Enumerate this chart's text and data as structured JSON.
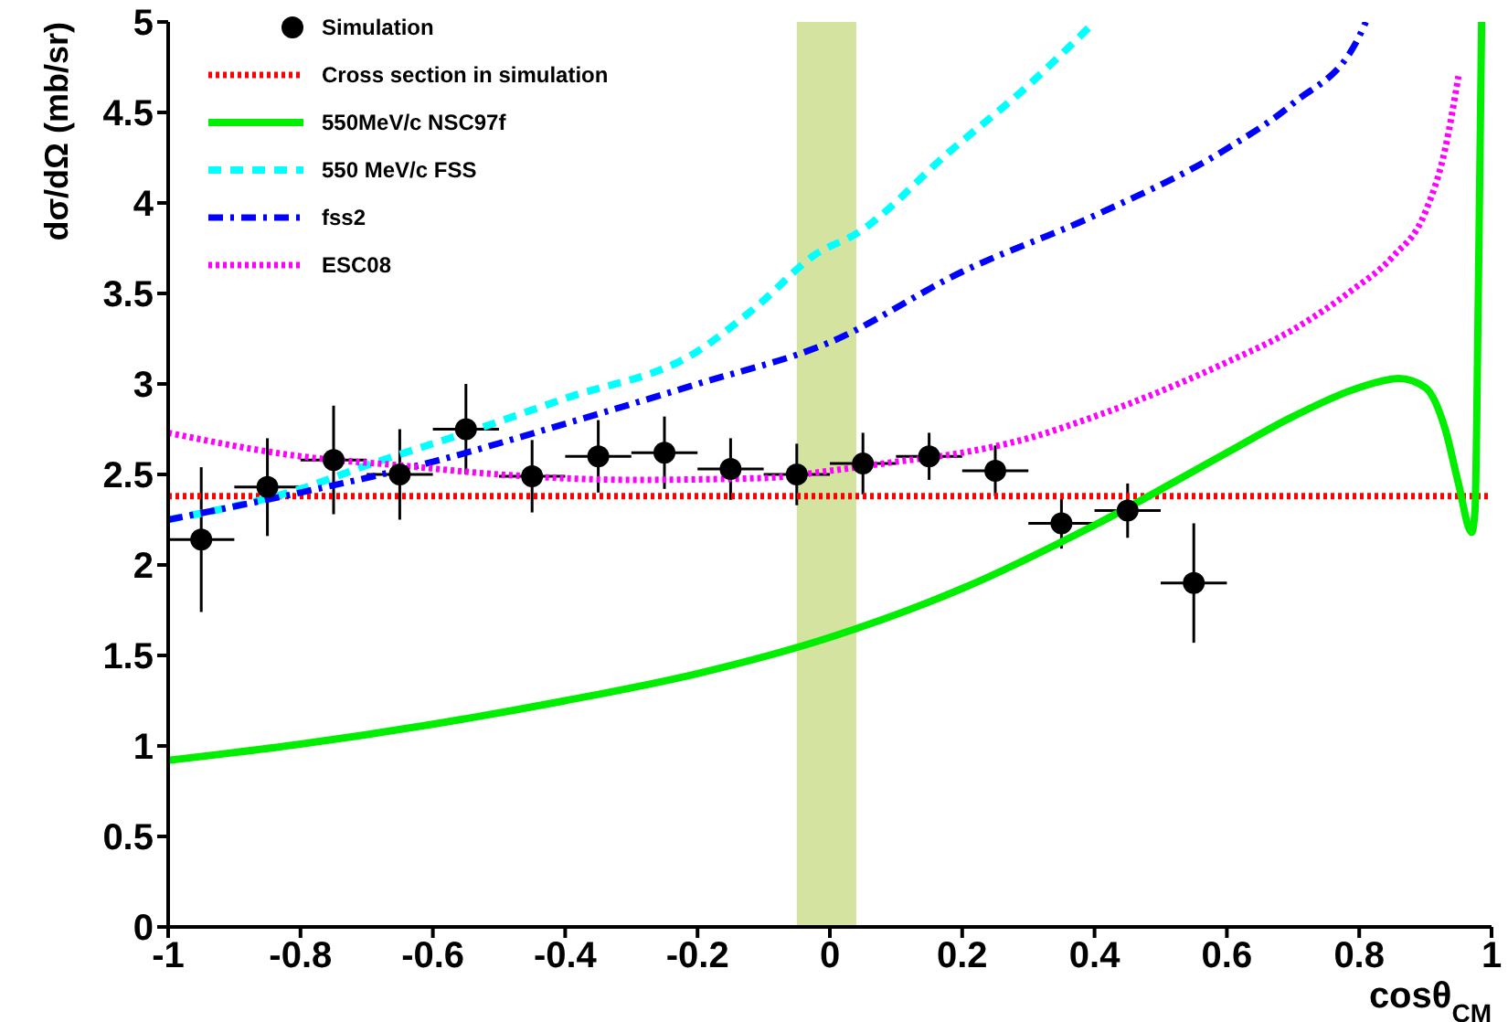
{
  "chart_data": {
    "type": "line",
    "xlabel": "cosθ$_{CM}$",
    "ylabel": "dσ/dΩ (mb/sr)",
    "xlim": [
      -1,
      1
    ],
    "xticks": [
      -1,
      -0.8,
      -0.6,
      -0.4,
      -0.2,
      0,
      0.2,
      0.4,
      0.6,
      0.8,
      1
    ],
    "ylim": [
      0,
      5
    ],
    "yticks": [
      0,
      0.5,
      1,
      1.5,
      2,
      2.5,
      3,
      3.5,
      4,
      4.5,
      5
    ],
    "grid": false,
    "legend": "top left",
    "bands": [
      {
        "axis": "x",
        "from": -0.05,
        "to": 0.04,
        "color": "#d4e4a0"
      }
    ],
    "series": [
      {
        "name": "Simulation",
        "type": "scatter",
        "marker": "circle",
        "color": "#000000",
        "x": [
          -0.95,
          -0.85,
          -0.75,
          -0.65,
          -0.55,
          -0.45,
          -0.35,
          -0.25,
          -0.15,
          -0.05,
          0.05,
          0.15,
          0.25,
          0.35,
          0.45,
          0.55
        ],
        "values": [
          2.14,
          2.43,
          2.58,
          2.5,
          2.75,
          2.49,
          2.6,
          2.62,
          2.53,
          2.5,
          2.56,
          2.6,
          2.52,
          2.23,
          2.3,
          1.9
        ],
        "errors": [
          0.4,
          0.27,
          0.3,
          0.25,
          0.25,
          0.2,
          0.2,
          0.2,
          0.17,
          0.17,
          0.17,
          0.13,
          0.14,
          0.14,
          0.15,
          0.33
        ],
        "xerrors": [
          0.05,
          0.05,
          0.05,
          0.05,
          0.05,
          0.05,
          0.05,
          0.05,
          0.05,
          0.05,
          0.05,
          0.05,
          0.05,
          0.05,
          0.05,
          0.05
        ]
      },
      {
        "name": "Cross section in simulation",
        "line_style": "dotted",
        "color": "#ff0000",
        "x": [
          -1,
          1
        ],
        "values": [
          2.38,
          2.38
        ]
      },
      {
        "name": "550MeV/c NSC97f",
        "line_style": "solid",
        "color": "#00ee00",
        "x": [
          -1,
          -0.8,
          -0.6,
          -0.4,
          -0.2,
          0,
          0.2,
          0.4,
          0.6,
          0.7,
          0.8,
          0.86,
          0.9,
          0.93,
          0.95,
          0.97,
          0.975,
          0.98,
          0.985
        ],
        "values": [
          0.92,
          1.01,
          1.12,
          1.25,
          1.4,
          1.6,
          1.87,
          2.22,
          2.62,
          2.82,
          2.98,
          3.03,
          2.98,
          2.75,
          2.45,
          2.18,
          2.3,
          3.5,
          5
        ]
      },
      {
        "name": "550 MeV/c FSS",
        "line_style": "dashed",
        "color": "#00ffff",
        "x": [
          -1,
          -0.8,
          -0.7,
          -0.55,
          -0.4,
          -0.2,
          -0.11,
          -0.02,
          0.04,
          0.18,
          0.3,
          0.4
        ],
        "values": [
          2.25,
          2.42,
          2.55,
          2.73,
          2.92,
          3.18,
          3.43,
          3.72,
          3.83,
          4.28,
          4.65,
          5
        ]
      },
      {
        "name": "fss2",
        "line_style": "dashdot",
        "color": "#0000ff",
        "x": [
          -1,
          -0.8,
          -0.6,
          -0.4,
          -0.2,
          0,
          0.2,
          0.4,
          0.6,
          0.7,
          0.8,
          0.81
        ],
        "values": [
          2.25,
          2.4,
          2.57,
          2.78,
          3.0,
          3.23,
          3.62,
          3.93,
          4.3,
          4.55,
          4.92,
          5
        ]
      },
      {
        "name": "ESC08",
        "line_style": "dotted",
        "color": "#ff00ff",
        "x": [
          -1,
          -0.8,
          -0.65,
          -0.5,
          -0.3,
          -0.1,
          0,
          0.1,
          0.2,
          0.3,
          0.4,
          0.5,
          0.6,
          0.7,
          0.79,
          0.85,
          0.9,
          0.93,
          0.95
        ],
        "values": [
          2.73,
          2.6,
          2.55,
          2.5,
          2.47,
          2.48,
          2.52,
          2.57,
          2.62,
          2.7,
          2.82,
          2.96,
          3.12,
          3.3,
          3.52,
          3.7,
          3.95,
          4.3,
          4.7
        ]
      }
    ]
  }
}
